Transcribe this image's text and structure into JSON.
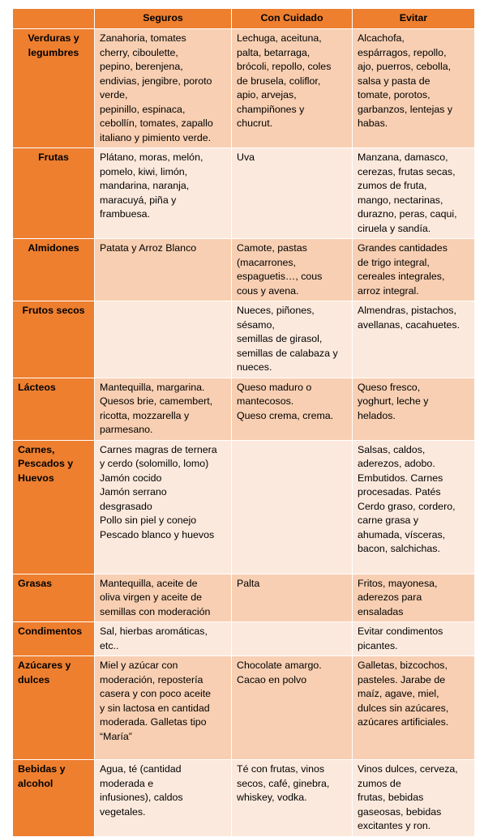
{
  "table": {
    "headers": [
      "",
      "Seguros",
      "Con Cuidado",
      "Evitar"
    ],
    "rows": [
      {
        "category": "Verduras y\nlegumbres",
        "seguros": "Zanahoria, tomates\ncherry, ciboulette,\npepino, berenjena,\nendivias, jengibre, poroto\nverde,\npepinillo, espinaca,\ncebollín, tomates, zapallo\nitaliano y pimiento verde.",
        "con_cuidado": "Lechuga, aceituna,\npalta, betarraga,\nbrócoli, repollo, coles\nde brusela, coliflor,\napio, arvejas,\nchampiñones y\nchucrut.",
        "evitar": "Alcachofa,\nespárragos, repollo,\najo, puerros, cebolla,\nsalsa y pasta de\ntomate, porotos,\ngarbanzos, lentejas y\nhabas."
      },
      {
        "category": "Frutas",
        "seguros": "Plátano, moras, melón,\npomelo, kiwi, limón,\nmandarina, naranja,\nmaracuyá, piña y\nframbuesa.",
        "con_cuidado": "Uva",
        "evitar": "Manzana, damasco,\ncerezas, frutas secas,\nzumos de fruta,\nmango, nectarinas,\ndurazno, peras, caqui,\nciruela y sandía."
      },
      {
        "category": "Almidones",
        "seguros": "Patata y Arroz Blanco",
        "con_cuidado": "Camote, pastas\n(macarrones,\nespaguetis…, cous\ncous y avena.",
        "evitar": "Grandes cantidades\nde trigo integral,\ncereales integrales,\narroz integral."
      },
      {
        "category": "Frutos secos",
        "seguros": "",
        "con_cuidado": "Nueces, piñones,\nsésamo,\nsemillas de girasol,\nsemillas de calabaza y\nnueces.",
        "evitar": "Almendras, pistachos,\navellanas, cacahuetes."
      },
      {
        "category": "Lácteos",
        "seguros": "Mantequilla, margarina.\nQuesos brie, camembert,\nricotta, mozzarella y\nparmesano.",
        "con_cuidado": "Queso maduro o\nmantecosos.\nQueso crema, crema.",
        "evitar": "Queso fresco,\nyoghurt, leche y\nhelados."
      },
      {
        "category": "Carnes,\nPescados y\nHuevos",
        "seguros": "Carnes magras de ternera\ny cerdo (solomillo, lomo)\nJamón cocido\nJamón serrano\ndesgrasado\nPollo sin piel y conejo\nPescado blanco y huevos",
        "con_cuidado": "",
        "evitar": "Salsas, caldos,\naderezos, adobo.\nEmbutidos. Carnes\nprocesadas. Patés\nCerdo graso, cordero,\ncarne grasa y\nahumada, vísceras,\nbacon, salchichas."
      },
      {
        "category": "Grasas",
        "seguros": "Mantequilla, aceite de\noliva virgen y aceite de\nsemillas con moderación",
        "con_cuidado": "Palta",
        "evitar": "Fritos, mayonesa,\naderezos para\nensaladas"
      },
      {
        "category": "Condimentos",
        "seguros": "Sal, hierbas aromáticas,\netc..",
        "con_cuidado": "",
        "evitar": "Evitar condimentos\npicantes."
      },
      {
        "category": "Azúcares y\ndulces",
        "seguros": "Miel y azúcar con\nmoderación, repostería\ncasera y con poco aceite\ny sin lactosa en cantidad\nmoderada. Galletas tipo\n“María”",
        "con_cuidado": "Chocolate amargo.\nCacao en polvo",
        "evitar": "Galletas, bizcochos,\npasteles. Jarabe de\nmaíz, agave, miel,\ndulces sin azúcares,\nazúcares artificiales."
      },
      {
        "category": "Bebidas y\nalcohol",
        "seguros": "Agua, té (cantidad\nmoderada e\ninfusiones), caldos\nvegetales.",
        "con_cuidado": "Té con frutas, vinos\nsecos, café, ginebra,\nwhiskey, vodka.",
        "evitar": "Vinos dulces, cerveza,\nzumos de\nfrutas, bebidas\ngaseosas, bebidas\nexcitantes y ron."
      }
    ]
  },
  "colors": {
    "header": "#ee7f2f",
    "category": "#ee7f2f",
    "row_dark": "#f8cfb2",
    "row_light": "#fce9dd"
  }
}
